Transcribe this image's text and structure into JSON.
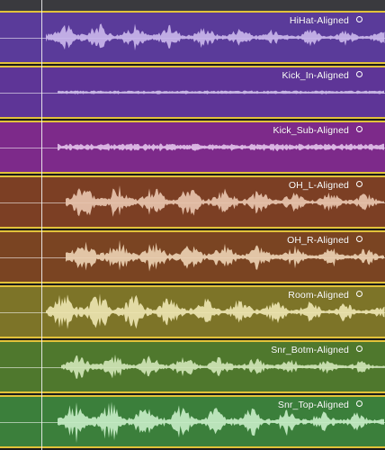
{
  "tracks": [
    {
      "label": "HiHat-Aligned",
      "color": "#5a3b9a",
      "wave_color": "#c9b6ea",
      "amp": 0.7,
      "onset": 0.12
    },
    {
      "label": "Kick_In-Aligned",
      "color": "#5e3597",
      "wave_color": "#cdbde8",
      "amp": 0.06,
      "onset": 0.15
    },
    {
      "label": "Kick_Sub-Aligned",
      "color": "#7d2a8a",
      "wave_color": "#e0bfe8",
      "amp": 0.12,
      "onset": 0.15
    },
    {
      "label": "OH_L-Aligned",
      "color": "#7c3f24",
      "wave_color": "#e7c3ae",
      "amp": 0.85,
      "onset": 0.17
    },
    {
      "label": "OH_R-Aligned",
      "color": "#7a4422",
      "wave_color": "#ead0b2",
      "amp": 0.85,
      "onset": 0.17
    },
    {
      "label": "Room-Aligned",
      "color": "#7d7428",
      "wave_color": "#ece4b0",
      "amp": 0.9,
      "onset": 0.12
    },
    {
      "label": "Snr_Botm-Aligned",
      "color": "#4f782d",
      "wave_color": "#cfe5b6",
      "amp": 0.6,
      "onset": 0.16
    },
    {
      "label": "Snr_Top-Aligned",
      "color": "#3b7f3b",
      "wave_color": "#c6ebc6",
      "amp": 0.95,
      "onset": 0.15
    }
  ],
  "icons": {
    "loop": "loop-icon"
  }
}
